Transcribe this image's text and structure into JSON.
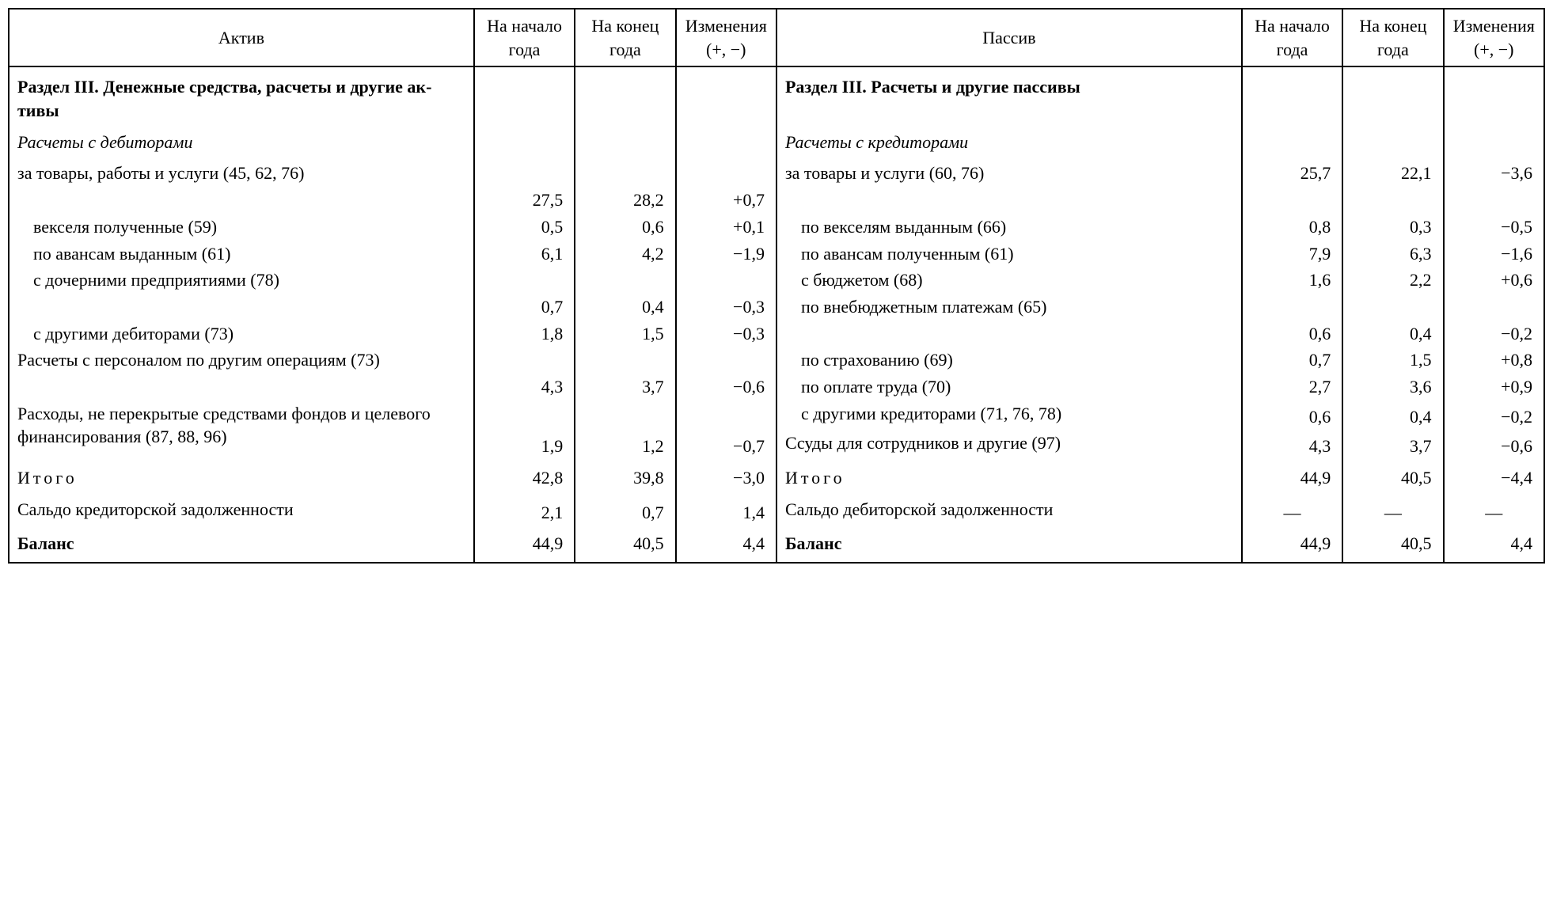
{
  "headers": {
    "asset": "Актив",
    "liab": "Пассив",
    "start": "На начало года",
    "end": "На конец года",
    "chg": "Изме­нения (+, −)"
  },
  "asset": {
    "section": "Раздел III. Денежные сред­ства, расчеты и другие ак­тивы",
    "sub": "Расчеты с дебиторами",
    "goods": {
      "l": "за товары, работы и услуги (45, 62, 76)",
      "a": "27,5",
      "b": "28,2",
      "c": "+0,7"
    },
    "bills": {
      "l": "векселя полученные (59)",
      "a": "0,5",
      "b": "0,6",
      "c": "+0,1"
    },
    "advances": {
      "l": "по авансам выданным (61)",
      "a": "6,1",
      "b": "4,2",
      "c": "−1,9"
    },
    "subsid": {
      "l": "с дочерними предприятия­ми (78)",
      "a": "0,7",
      "b": "0,4",
      "c": "−0,3"
    },
    "other": {
      "l": "с другими дебиторами (73)",
      "a": "1,8",
      "b": "1,5",
      "c": "−0,3"
    },
    "staff": {
      "l": "Расчеты с персоналом по другим операциям (73)",
      "a": "4,3",
      "b": "3,7",
      "c": "−0,6"
    },
    "expenses": {
      "l": "Расходы, не перекрытые средствами фондов и целево­го финансирования (87, 88, 96)",
      "a": "1,9",
      "b": "1,2",
      "c": "−0,7"
    },
    "total": {
      "l": "Итого",
      "a": "42,8",
      "b": "39,8",
      "c": "−3,0"
    },
    "saldo": {
      "l": "Сальдо кредиторской задол­женности",
      "a": "2,1",
      "b": "0,7",
      "c": "1,4"
    },
    "balance": {
      "l": "Баланс",
      "a": "44,9",
      "b": "40,5",
      "c": "4,4"
    }
  },
  "liab": {
    "section": "Раздел III. Расчеты и другие пассивы",
    "sub": "Расчеты с кредиторами",
    "goods": {
      "l": "за товары и услуги (60, 76)",
      "a": "25,7",
      "b": "22,1",
      "c": "−3,6"
    },
    "bills": {
      "l": "по векселям выданным (66)",
      "a": "0,8",
      "b": "0,3",
      "c": "−0,5"
    },
    "advances": {
      "l": "по авансам полученным (61)",
      "a": "7,9",
      "b": "6,3",
      "c": "−1,6"
    },
    "budget": {
      "l": "с бюджетом (68)",
      "a": "1,6",
      "b": "2,2",
      "c": "+0,6"
    },
    "offbud": {
      "l": "по внебюджетным плате­жам (65)",
      "a": "0,6",
      "b": "0,4",
      "c": "−0,2"
    },
    "insur": {
      "l": "по страхованию (69)",
      "a": "0,7",
      "b": "1,5",
      "c": "+0,8"
    },
    "wages": {
      "l": "по оплате труда (70)",
      "a": "2,7",
      "b": "3,6",
      "c": "+0,9"
    },
    "other": {
      "l": "с другими кредиторами (71, 76, 78)",
      "a": "0,6",
      "b": "0,4",
      "c": "−0,2"
    },
    "loans": {
      "l": "Ссуды для сотрудников и другие (97)",
      "a": "4,3",
      "b": "3,7",
      "c": "−0,6"
    },
    "total": {
      "l": "Итого",
      "a": "44,9",
      "b": "40,5",
      "c": "−4,4"
    },
    "saldo": {
      "l": "Сальдо дебиторской задол­женности",
      "a": "—",
      "b": "—",
      "c": "—"
    },
    "balance": {
      "l": "Баланс",
      "a": "44,9",
      "b": "40,5",
      "c": "4,4"
    }
  }
}
